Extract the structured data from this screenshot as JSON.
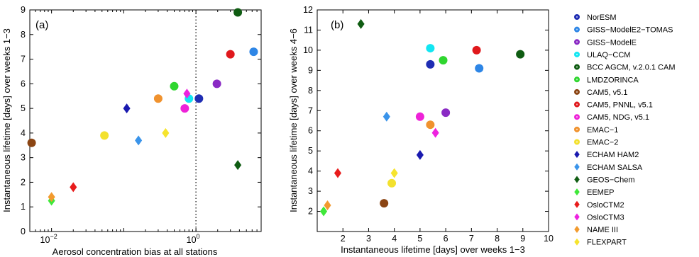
{
  "models": [
    {
      "name": "NorESM",
      "color": "#1f2db3",
      "marker": "circle"
    },
    {
      "name": "GISS−ModelE2−TOMAS",
      "color": "#2e86e6",
      "marker": "circle"
    },
    {
      "name": "GISS−ModelE",
      "color": "#8a2ac4",
      "marker": "circle"
    },
    {
      "name": "ULAQ−CCM",
      "color": "#12e6f2",
      "marker": "circle"
    },
    {
      "name": "BCC AGCM, v.2.0.1 CAM",
      "color": "#0f5c12",
      "marker": "circle"
    },
    {
      "name": "LMDZORINCA",
      "color": "#2fd62f",
      "marker": "circle"
    },
    {
      "name": "CAM5, v5.1",
      "color": "#8b4513",
      "marker": "circle"
    },
    {
      "name": "CAM5, PNNL, v5.1",
      "color": "#e0181c",
      "marker": "circle"
    },
    {
      "name": "CAM5, NDG, v5.1",
      "color": "#ee22d8",
      "marker": "circle"
    },
    {
      "name": "EMAC−1",
      "color": "#f0922e",
      "marker": "circle"
    },
    {
      "name": "EMAC−2",
      "color": "#f3e12e",
      "marker": "circle"
    },
    {
      "name": "ECHAM HAM2",
      "color": "#1a1aaf",
      "marker": "diamond"
    },
    {
      "name": "ECHAM SALSA",
      "color": "#3a94ea",
      "marker": "diamond"
    },
    {
      "name": "GEOS−Chem",
      "color": "#0f5c12",
      "marker": "diamond"
    },
    {
      "name": "EEMEP",
      "color": "#3fe83a",
      "marker": "diamond"
    },
    {
      "name": "OsloCTM2",
      "color": "#e81c1c",
      "marker": "diamond"
    },
    {
      "name": "OsloCTM3",
      "color": "#ee22e0",
      "marker": "diamond"
    },
    {
      "name": "NAME III",
      "color": "#f29a2e",
      "marker": "diamond"
    },
    {
      "name": "FLEXPART",
      "color": "#f6e42e",
      "marker": "diamond"
    }
  ],
  "chart_data": [
    {
      "type": "scatter",
      "panel_label": "(a)",
      "xlabel": "Aerosol concentration bias at all stations",
      "ylabel": "Instantaneous lifetime [days] over weeks 1−3",
      "xscale": "log",
      "xlim": [
        0.005,
        8
      ],
      "ylim": [
        0,
        9
      ],
      "xtick_labels": [
        "10^-2",
        "10^0"
      ],
      "ytick_labels": [
        "0",
        "1",
        "2",
        "3",
        "4",
        "5",
        "6",
        "7",
        "8",
        "9"
      ],
      "reference_line": {
        "x": 1,
        "style": "dotted"
      },
      "points": [
        {
          "model": "NorESM",
          "x": 1.1,
          "y": 5.4
        },
        {
          "model": "GISS−ModelE2−TOMAS",
          "x": 6.3,
          "y": 7.3
        },
        {
          "model": "GISS−ModelE",
          "x": 1.95,
          "y": 6.0
        },
        {
          "model": "ULAQ−CCM",
          "x": 0.8,
          "y": 5.4
        },
        {
          "model": "BCC AGCM, v.2.0.1 CAM",
          "x": 3.8,
          "y": 8.9
        },
        {
          "model": "LMDZORINCA",
          "x": 0.5,
          "y": 5.9
        },
        {
          "model": "CAM5, v5.1",
          "x": 0.0053,
          "y": 3.6
        },
        {
          "model": "CAM5, PNNL, v5.1",
          "x": 3.0,
          "y": 7.2
        },
        {
          "model": "CAM5, NDG, v5.1",
          "x": 0.7,
          "y": 5.0
        },
        {
          "model": "EMAC−1",
          "x": 0.3,
          "y": 5.4
        },
        {
          "model": "EMAC−2",
          "x": 0.054,
          "y": 3.9
        },
        {
          "model": "ECHAM HAM2",
          "x": 0.11,
          "y": 5.0
        },
        {
          "model": "ECHAM SALSA",
          "x": 0.16,
          "y": 3.7
        },
        {
          "model": "GEOS−Chem",
          "x": 3.8,
          "y": 2.7
        },
        {
          "model": "EEMEP",
          "x": 0.01,
          "y": 1.25
        },
        {
          "model": "OsloCTM2",
          "x": 0.02,
          "y": 1.8
        },
        {
          "model": "OsloCTM3",
          "x": 0.75,
          "y": 5.6
        },
        {
          "model": "NAME III",
          "x": 0.01,
          "y": 1.4
        },
        {
          "model": "FLEXPART",
          "x": 0.38,
          "y": 4.0
        }
      ]
    },
    {
      "type": "scatter",
      "panel_label": "(b)",
      "xlabel": "Instantaneous lifetime [days] over weeks 1−3",
      "ylabel": "Instantaneous lifetime [days] over weeks 4−6",
      "xlim": [
        1,
        10
      ],
      "ylim": [
        1,
        12
      ],
      "xticks": [
        2,
        3,
        4,
        5,
        6,
        7,
        8,
        9,
        10
      ],
      "yticks": [
        2,
        3,
        4,
        5,
        6,
        7,
        8,
        9,
        10,
        11,
        12
      ],
      "points": [
        {
          "model": "NorESM",
          "x": 5.4,
          "y": 9.3
        },
        {
          "model": "GISS−ModelE2−TOMAS",
          "x": 7.3,
          "y": 9.1
        },
        {
          "model": "GISS−ModelE",
          "x": 6.0,
          "y": 6.9
        },
        {
          "model": "ULAQ−CCM",
          "x": 5.4,
          "y": 10.1
        },
        {
          "model": "BCC AGCM, v.2.0.1 CAM",
          "x": 8.9,
          "y": 9.8
        },
        {
          "model": "LMDZORINCA",
          "x": 5.9,
          "y": 9.5
        },
        {
          "model": "CAM5, v5.1",
          "x": 3.6,
          "y": 2.4
        },
        {
          "model": "CAM5, PNNL, v5.1",
          "x": 7.2,
          "y": 10.0
        },
        {
          "model": "CAM5, NDG, v5.1",
          "x": 5.0,
          "y": 6.7
        },
        {
          "model": "EMAC−1",
          "x": 5.4,
          "y": 6.3
        },
        {
          "model": "EMAC−2",
          "x": 3.9,
          "y": 3.4
        },
        {
          "model": "ECHAM HAM2",
          "x": 5.0,
          "y": 4.8
        },
        {
          "model": "ECHAM SALSA",
          "x": 3.7,
          "y": 6.7
        },
        {
          "model": "GEOS−Chem",
          "x": 2.7,
          "y": 11.3
        },
        {
          "model": "EEMEP",
          "x": 1.25,
          "y": 2.0
        },
        {
          "model": "OsloCTM2",
          "x": 1.8,
          "y": 3.9
        },
        {
          "model": "OsloCTM3",
          "x": 5.6,
          "y": 5.9
        },
        {
          "model": "NAME III",
          "x": 1.4,
          "y": 2.3
        },
        {
          "model": "FLEXPART",
          "x": 4.0,
          "y": 3.9
        }
      ]
    }
  ]
}
